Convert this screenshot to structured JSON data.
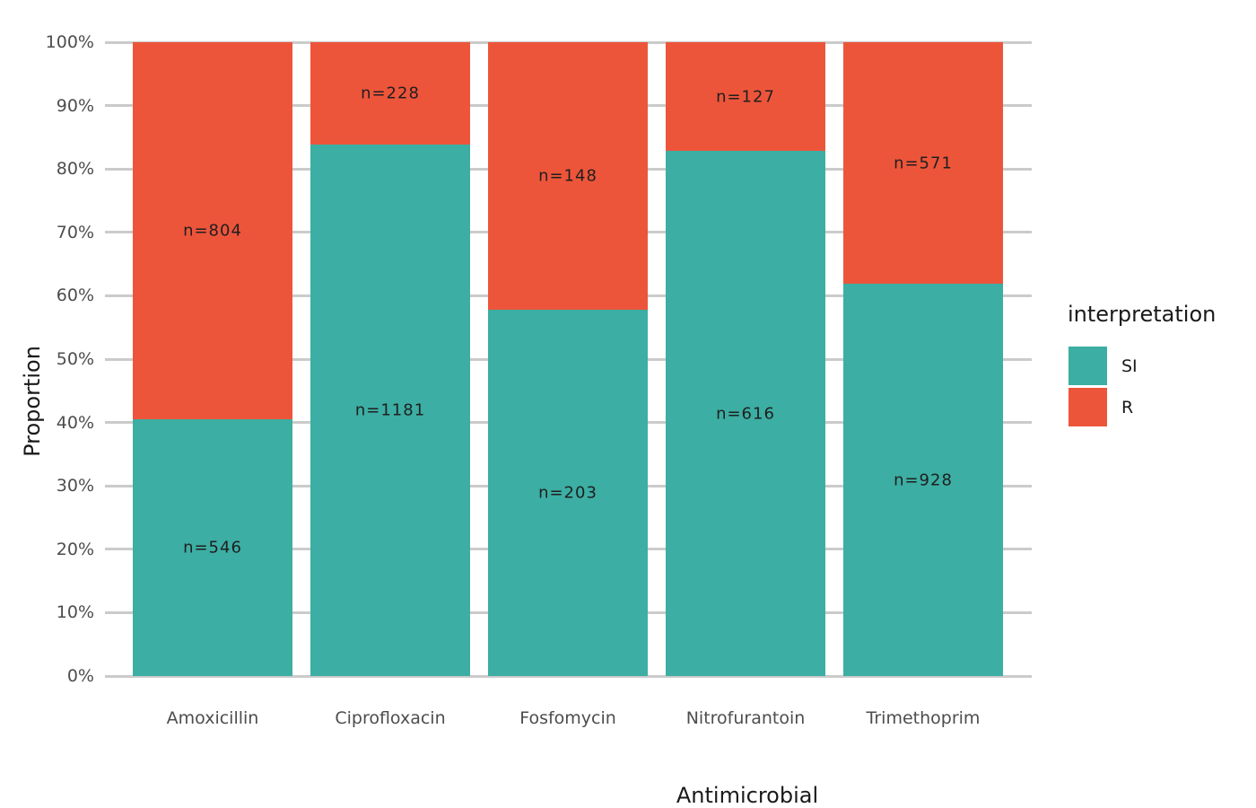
{
  "chart_data": {
    "type": "bar",
    "variant": "stacked-proportional",
    "title": "",
    "xlabel": "Antimicrobial",
    "ylabel": "Proportion",
    "categories": [
      "Amoxicillin",
      "Ciprofloxacin",
      "Fosfomycin",
      "Nitrofurantoin",
      "Trimethoprim"
    ],
    "series": [
      {
        "name": "SI",
        "color": "#3CAEA3",
        "values": [
          546,
          1181,
          203,
          616,
          928
        ],
        "labels": [
          "n=546",
          "n=1181",
          "n=203",
          "n=616",
          "n=928"
        ]
      },
      {
        "name": "R",
        "color": "#ED553B",
        "values": [
          804,
          228,
          148,
          127,
          571
        ],
        "labels": [
          "n=804",
          "n=228",
          "n=148",
          "n=127",
          "n=571"
        ]
      }
    ],
    "stack_order_bottom_to_top": [
      "SI",
      "R"
    ],
    "y_ticks": [
      "0%",
      "10%",
      "20%",
      "30%",
      "40%",
      "50%",
      "60%",
      "70%",
      "80%",
      "90%",
      "100%"
    ],
    "ylim": [
      0,
      1
    ],
    "grid": "horizontal-major",
    "gridline_color": "#cbcbcb",
    "background_color": "#ffffff",
    "legend": {
      "title": "interpretation",
      "position": "right",
      "entries": [
        {
          "label": "SI",
          "color": "#3CAEA3"
        },
        {
          "label": "R",
          "color": "#ED553B"
        }
      ]
    }
  }
}
